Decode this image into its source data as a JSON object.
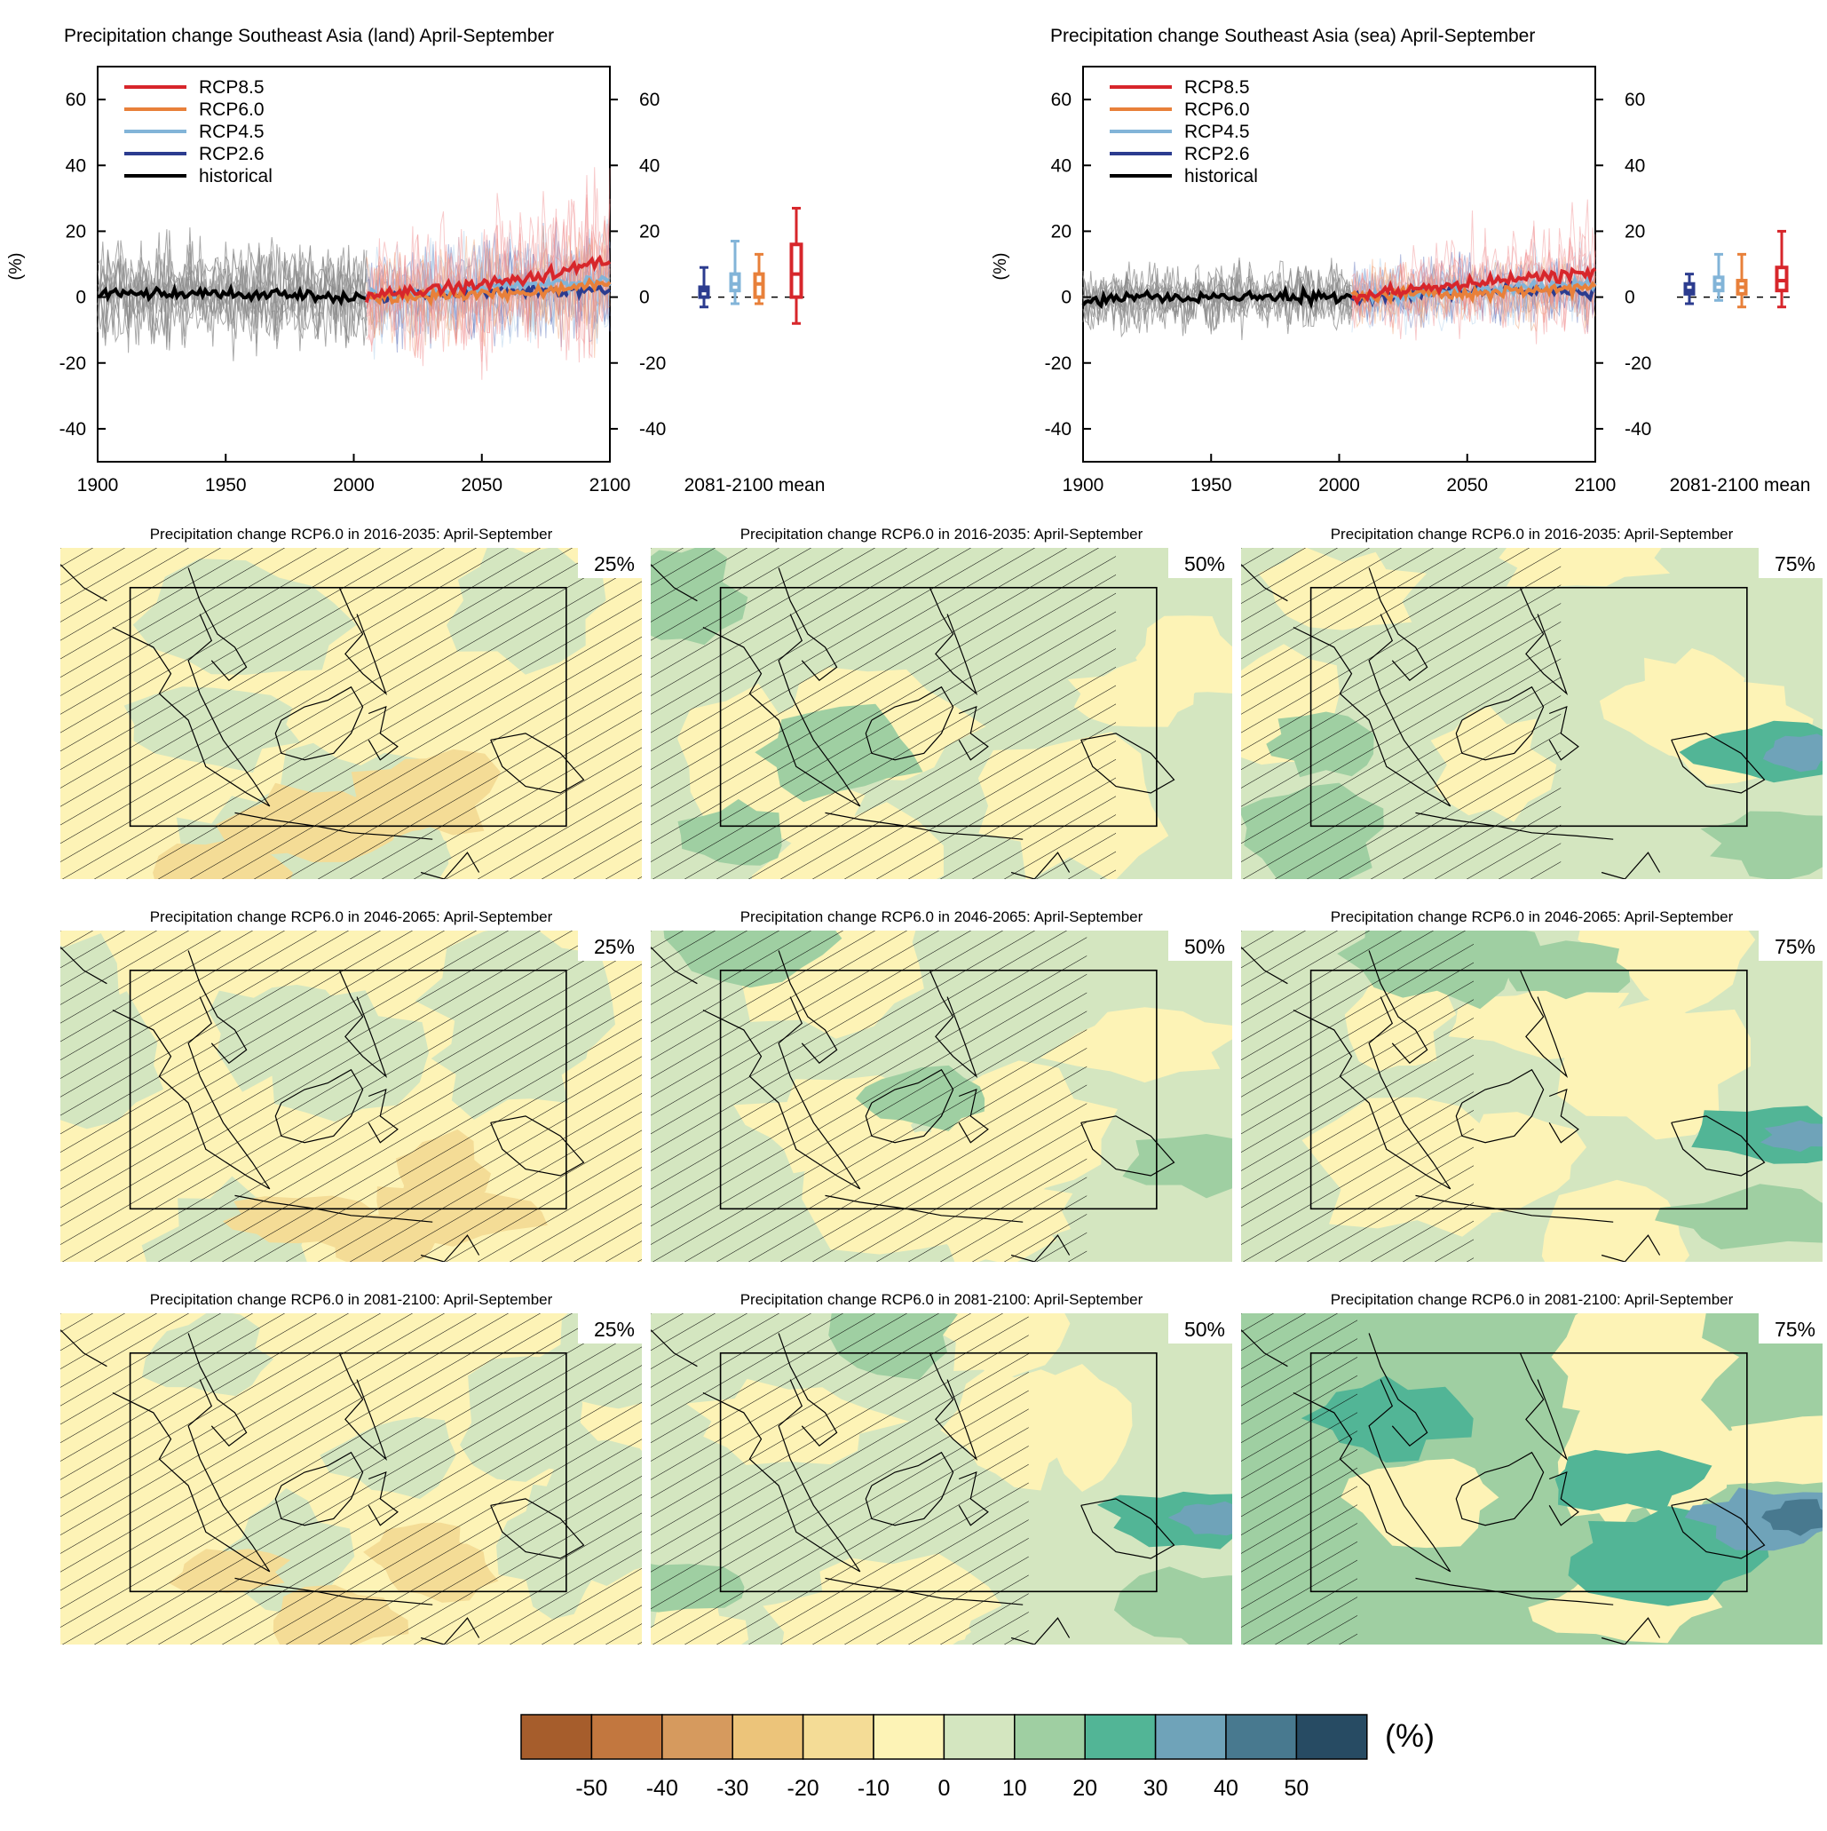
{
  "colors": {
    "rcp85": "#d7262b",
    "rcp60": "#e8803a",
    "rcp45": "#82b4d8",
    "rcp26": "#2c3c8f",
    "historical": "#000000",
    "model_spread": "#8c8c8c"
  },
  "timeseries": [
    {
      "title": "Precipitation change Southeast Asia (land) April-September",
      "ylabel": "(%)",
      "box_label": "2081-2100 mean",
      "legend": [
        "RCP8.5",
        "RCP6.0",
        "RCP4.5",
        "RCP2.6",
        "historical"
      ]
    },
    {
      "title": "Precipitation change Southeast Asia (sea) April-September",
      "ylabel": "(%)",
      "box_label": "2081-2100 mean",
      "legend": [
        "RCP8.5",
        "RCP6.0",
        "RCP4.5",
        "RCP2.6",
        "historical"
      ]
    }
  ],
  "maps": {
    "titles": [
      "Precipitation change RCP6.0 in 2016-2035: April-September",
      "Precipitation change RCP6.0 in 2046-2065: April-September",
      "Precipitation change RCP6.0 in 2081-2100: April-September"
    ],
    "percentiles": [
      "25%",
      "50%",
      "75%"
    ],
    "panels": [
      {
        "period": "2016-2035",
        "percentile": "25%",
        "base_level": "0 to -10",
        "regional_change": -5
      },
      {
        "period": "2016-2035",
        "percentile": "50%",
        "base_level": "0 to 10",
        "regional_change": 1
      },
      {
        "period": "2016-2035",
        "percentile": "75%",
        "base_level": "0 to 10",
        "regional_change": 6
      },
      {
        "period": "2046-2065",
        "percentile": "25%",
        "base_level": "0 to -10",
        "regional_change": -4
      },
      {
        "period": "2046-2065",
        "percentile": "50%",
        "base_level": "0 to 10",
        "regional_change": 2
      },
      {
        "period": "2046-2065",
        "percentile": "75%",
        "base_level": "0 to 10",
        "regional_change": 9
      },
      {
        "period": "2081-2100",
        "percentile": "25%",
        "base_level": "0 to -10",
        "regional_change": -3
      },
      {
        "period": "2081-2100",
        "percentile": "50%",
        "base_level": "0 to 10",
        "regional_change": 4
      },
      {
        "period": "2081-2100",
        "percentile": "75%",
        "base_level": "10 to 20",
        "regional_change": 13
      }
    ]
  },
  "colorbar": {
    "unit": "(%)",
    "colors": [
      "#a65d2c",
      "#c2773f",
      "#d69a5e",
      "#ecc47a",
      "#f4dc96",
      "#fdf3b6",
      "#d4e6c0",
      "#9fcfa2",
      "#52b596",
      "#6fa3b9",
      "#48798f",
      "#274b63"
    ],
    "ticks": [
      "-50",
      "-40",
      "-30",
      "-20",
      "-10",
      "0",
      "10",
      "20",
      "30",
      "40",
      "50"
    ]
  },
  "chart_data": [
    {
      "type": "line",
      "title": "Precipitation change Southeast Asia (land) April-September",
      "ylabel": "(%)",
      "xlim": [
        1900,
        2100
      ],
      "ylim": [
        -50,
        70
      ],
      "xticks": [
        1900,
        1950,
        2000,
        2050,
        2100
      ],
      "yticks": [
        -40,
        -20,
        0,
        20,
        40,
        60
      ],
      "legend_position": "top-left",
      "series": [
        {
          "name": "historical",
          "x": [
            1900,
            1925,
            1950,
            1975,
            2000,
            2005
          ],
          "y": [
            1,
            1,
            1,
            1,
            0,
            0
          ]
        },
        {
          "name": "RCP2.6",
          "x": [
            2005,
            2025,
            2050,
            2075,
            2100
          ],
          "y": [
            0,
            1,
            2,
            2,
            2
          ]
        },
        {
          "name": "RCP4.5",
          "x": [
            2005,
            2025,
            2050,
            2075,
            2100
          ],
          "y": [
            0,
            1,
            3,
            4,
            5
          ]
        },
        {
          "name": "RCP6.0",
          "x": [
            2005,
            2025,
            2050,
            2075,
            2100
          ],
          "y": [
            0,
            0,
            1,
            2,
            4
          ]
        },
        {
          "name": "RCP8.5",
          "x": [
            2005,
            2025,
            2050,
            2075,
            2100
          ],
          "y": [
            0,
            2,
            4,
            7,
            11
          ]
        }
      ],
      "boxplots_2081_2100": [
        {
          "name": "RCP2.6",
          "min": -3,
          "q1": 0,
          "median": 2,
          "q3": 3,
          "max": 9
        },
        {
          "name": "RCP4.5",
          "min": -2,
          "q1": 2,
          "median": 4,
          "q3": 7,
          "max": 17
        },
        {
          "name": "RCP6.0",
          "min": -2,
          "q1": 0,
          "median": 4,
          "q3": 7,
          "max": 13
        },
        {
          "name": "RCP8.5",
          "min": -8,
          "q1": 0,
          "median": 7,
          "q3": 16,
          "max": 27
        }
      ]
    },
    {
      "type": "line",
      "title": "Precipitation change Southeast Asia (sea) April-September",
      "ylabel": "(%)",
      "xlim": [
        1900,
        2100
      ],
      "ylim": [
        -50,
        70
      ],
      "xticks": [
        1900,
        1950,
        2000,
        2050,
        2100
      ],
      "yticks": [
        -40,
        -20,
        0,
        20,
        40,
        60
      ],
      "legend_position": "top-left",
      "series": [
        {
          "name": "historical",
          "x": [
            1900,
            1925,
            1950,
            1975,
            2000,
            2005
          ],
          "y": [
            -1,
            0,
            0,
            0,
            0,
            0
          ]
        },
        {
          "name": "RCP2.6",
          "x": [
            2005,
            2025,
            2050,
            2075,
            2100
          ],
          "y": [
            0,
            1,
            2,
            2,
            2
          ]
        },
        {
          "name": "RCP4.5",
          "x": [
            2005,
            2025,
            2050,
            2075,
            2100
          ],
          "y": [
            0,
            1,
            2,
            3,
            4
          ]
        },
        {
          "name": "RCP6.0",
          "x": [
            2005,
            2025,
            2050,
            2075,
            2100
          ],
          "y": [
            0,
            1,
            1,
            2,
            3
          ]
        },
        {
          "name": "RCP8.5",
          "x": [
            2005,
            2025,
            2050,
            2075,
            2100
          ],
          "y": [
            0,
            2,
            4,
            6,
            7
          ]
        }
      ],
      "boxplots_2081_2100": [
        {
          "name": "RCP2.6",
          "min": -2,
          "q1": 1,
          "median": 2,
          "q3": 4,
          "max": 7
        },
        {
          "name": "RCP4.5",
          "min": -1,
          "q1": 2,
          "median": 4,
          "q3": 6,
          "max": 13
        },
        {
          "name": "RCP6.0",
          "min": -3,
          "q1": 1,
          "median": 3,
          "q3": 5,
          "max": 13
        },
        {
          "name": "RCP8.5",
          "min": -3,
          "q1": 2,
          "median": 5,
          "q3": 9,
          "max": 20
        }
      ]
    }
  ]
}
